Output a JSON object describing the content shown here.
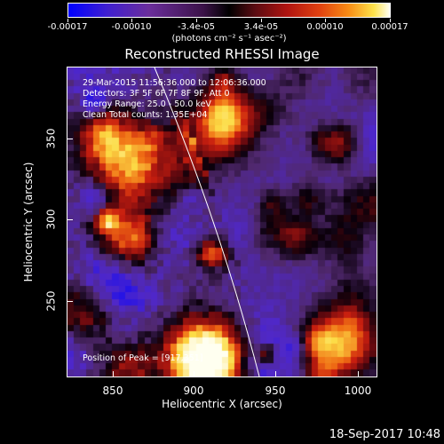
{
  "colorbar": {
    "tick_labels": [
      "-0.00017",
      "-0.00010",
      "-3.4e-05",
      "3.4e-05",
      "0.00010",
      "0.00017"
    ],
    "units_label": "(photons cm⁻² s⁻¹ asec⁻²)"
  },
  "title": "Reconstructed RHESSI Image",
  "annotations": {
    "time_range": "29-Mar-2015 11:56:36.000 to 12:06:36.000",
    "detectors": "Detectors: 3F 5F 6F 7F 8F 9F, Att 0",
    "energy_range": "Energy Range: 25.0 - 50.0 keV",
    "clean_counts": "Clean     Total counts: 1.35E+04",
    "peak_position": "Position of Peak = [917,351]"
  },
  "x_axis": {
    "label": "Heliocentric X (arcsec)",
    "ticks": [
      "850",
      "900",
      "950",
      "1000"
    ],
    "range": [
      820,
      1112
    ]
  },
  "y_axis": {
    "label": "Heliocentric Y (arcsec)",
    "ticks": [
      "250",
      "300",
      "350"
    ],
    "range": [
      198,
      390
    ]
  },
  "timestamp": "18-Sep-2017 10:48",
  "colors": {
    "background": "#000000",
    "limb_line": "#ffffff"
  }
}
